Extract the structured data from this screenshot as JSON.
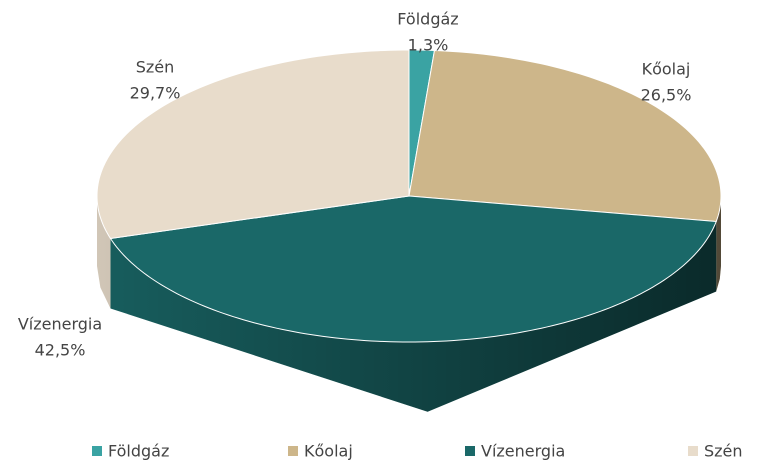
{
  "chart_data": {
    "type": "pie3d",
    "categories": [
      "Földgáz",
      "Kőolaj",
      "Vízenergia",
      "Szén"
    ],
    "values": [
      1.3,
      26.5,
      42.5,
      29.7
    ],
    "value_labels": [
      "1,3%",
      "26,5%",
      "42,5%",
      "29,7%"
    ],
    "colors": [
      "#3aa3a3",
      "#cdb68a",
      "#1a6868",
      "#e8dccb"
    ],
    "legend": "bottom"
  }
}
